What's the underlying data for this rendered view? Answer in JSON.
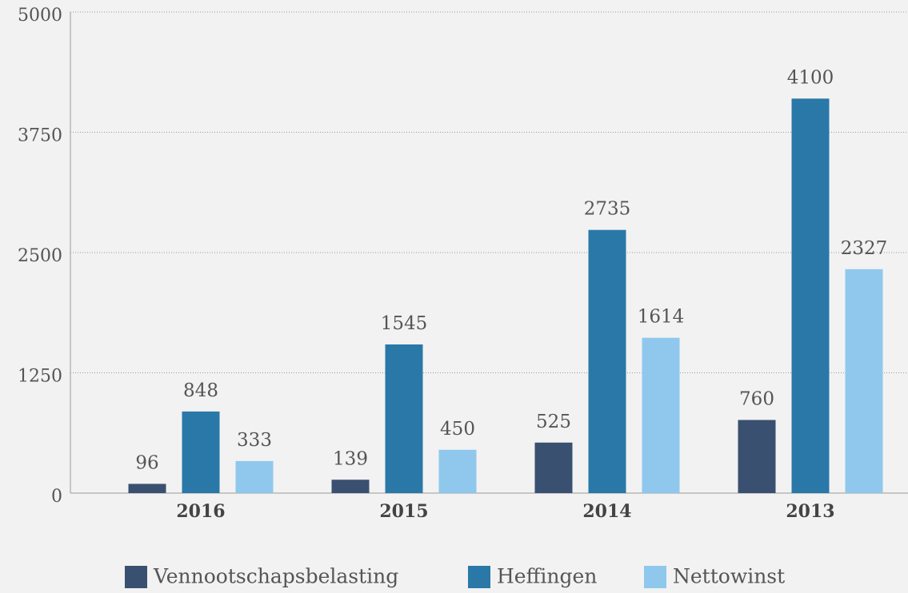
{
  "chart_data": {
    "type": "bar",
    "categories": [
      "2016",
      "2015",
      "2014",
      "2013"
    ],
    "series": [
      {
        "name": "Vennootschapsbelasting",
        "color": "#3a5070",
        "values": [
          96,
          139,
          525,
          760
        ]
      },
      {
        "name": "Heffingen",
        "color": "#2a78a8",
        "values": [
          848,
          1545,
          2735,
          4100
        ]
      },
      {
        "name": "Nettowinst",
        "color": "#8fc8ec",
        "values": [
          333,
          450,
          1614,
          2327
        ]
      }
    ],
    "ylim": [
      0,
      5000
    ],
    "yticks": [
      0,
      1250,
      2500,
      3750,
      5000
    ],
    "grid": true,
    "legend": "bottom"
  }
}
